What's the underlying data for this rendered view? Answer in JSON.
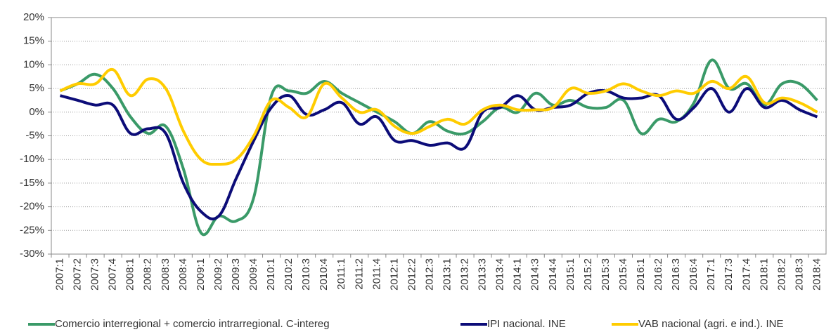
{
  "chart_data": {
    "type": "line",
    "categories": [
      "2007:1",
      "2007:2",
      "2007:3",
      "2007:4",
      "2008:1",
      "2008:2",
      "2008:3",
      "2008:4",
      "2009:1",
      "2009:2",
      "2009:3",
      "2009:4",
      "2010:1",
      "2010:2",
      "2010:3",
      "2010:4",
      "2011:1",
      "2011:2",
      "2011:4",
      "2012:1",
      "2012:2",
      "2012:3",
      "2013:1",
      "2013:2",
      "2013:3",
      "2013:4",
      "2014:1",
      "2014:3",
      "2014:4",
      "2015:1",
      "2015:2",
      "2015:3",
      "2015:4",
      "2016:1",
      "2016:2",
      "2016:3",
      "2016:4",
      "2017:1",
      "2017:3",
      "2017:4",
      "2018:1",
      "2018:2",
      "2018:3",
      "2018:4"
    ],
    "series": [
      {
        "name": "Comercio interregional + comercio intrarregional. C-intereg",
        "color": "#3a9a68",
        "values": [
          4.5,
          6,
          8,
          5,
          -1,
          -4.5,
          -3,
          -12,
          -25.5,
          -22,
          -23,
          -18,
          3.5,
          4.5,
          4,
          6.5,
          4,
          2,
          0,
          -2,
          -4.5,
          -2,
          -4,
          -4.5,
          -2,
          1,
          0,
          4,
          1.5,
          2.5,
          1,
          1,
          2.5,
          -4.5,
          -1.5,
          -2,
          2,
          11,
          5,
          6,
          1.5,
          6,
          6,
          2.5
        ]
      },
      {
        "name": "IPI nacional. INE",
        "color": "#0c0c78",
        "values": [
          3.5,
          2.5,
          1.5,
          1.5,
          -4.5,
          -3.5,
          -4.5,
          -15,
          -21,
          -22,
          -14,
          -6,
          1,
          3.5,
          -0.5,
          0.5,
          2,
          -2.5,
          -1,
          -6,
          -6,
          -7,
          -6.5,
          -7.5,
          0,
          1,
          3.5,
          0.5,
          1,
          1.5,
          4,
          4.5,
          3,
          3,
          3.5,
          -1.5,
          1,
          5,
          0,
          5,
          1,
          2.5,
          0.5,
          -1
        ]
      },
      {
        "name": "VAB nacional (agri. e ind.). INE",
        "color": "#ffcc00",
        "values": [
          4.5,
          6,
          6,
          9,
          3.5,
          7,
          5,
          -4,
          -10,
          -11,
          -10,
          -5,
          2.5,
          1,
          -1,
          6,
          3,
          0,
          0.5,
          -3,
          -4.5,
          -3,
          -1.5,
          -2.5,
          0.5,
          1.5,
          0.5,
          0.5,
          1,
          5,
          4,
          4.5,
          6,
          4.5,
          3.5,
          4.5,
          4,
          6.5,
          5,
          7.5,
          2,
          3,
          2,
          0
        ]
      }
    ],
    "ylim": [
      -30,
      20
    ],
    "yticks": [
      {
        "value": -30,
        "label": "-30%"
      },
      {
        "value": -25,
        "label": "-25%"
      },
      {
        "value": -20,
        "label": "-20%"
      },
      {
        "value": -15,
        "label": "-15%"
      },
      {
        "value": -10,
        "label": "-10%"
      },
      {
        "value": -5,
        "label": "-5%"
      },
      {
        "value": 0,
        "label": "0%"
      },
      {
        "value": 5,
        "label": "5%"
      },
      {
        "value": 10,
        "label": "10%"
      },
      {
        "value": 15,
        "label": "15%"
      },
      {
        "value": 20,
        "label": "20%"
      }
    ],
    "grid": true
  }
}
